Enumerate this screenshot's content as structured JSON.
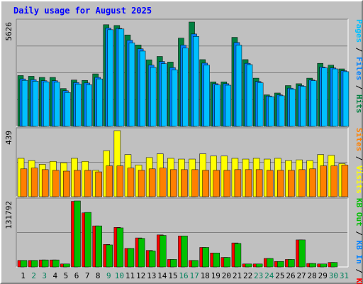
{
  "chart_data": {
    "type": "bar",
    "title": "Daily usage for August 2025",
    "categories": [
      "1",
      "2",
      "3",
      "4",
      "5",
      "6",
      "7",
      "8",
      "9",
      "10",
      "11",
      "12",
      "13",
      "14",
      "15",
      "16",
      "17",
      "18",
      "19",
      "20",
      "21",
      "22",
      "23",
      "24",
      "25",
      "26",
      "27",
      "28",
      "29",
      "30",
      "31"
    ],
    "weekend_days": [
      "2",
      "3",
      "9",
      "10",
      "16",
      "17",
      "23",
      "24",
      "30",
      "31"
    ],
    "panels": [
      {
        "id": "hits",
        "ymax_label": "5626",
        "ymax": 5626,
        "legend": [
          {
            "text": "Hits",
            "color": "#008040"
          },
          {
            "text": "Files",
            "color": "#0080ff"
          },
          {
            "text": "Pages",
            "color": "#00c0ff"
          }
        ],
        "series": [
          {
            "name": "Hits",
            "color": "#008040",
            "values": [
              2740,
              2700,
              2640,
              2640,
              2040,
              2500,
              2480,
              2830,
              5480,
              5440,
              4930,
              4390,
              3590,
              3770,
              3470,
              4760,
              5626,
              3600,
              2400,
              2400,
              4800,
              3600,
              2600,
              1700,
              1800,
              2200,
              2300,
              2600,
              3400,
              3300,
              3100
            ]
          },
          {
            "name": "Files",
            "color": "#0080ff",
            "values": [
              2560,
              2520,
              2460,
              2460,
              1920,
              2360,
              2340,
              2640,
              5300,
              5280,
              4640,
              4180,
              3300,
              3500,
              3170,
              4380,
              4980,
              3410,
              2300,
              2300,
              4520,
              3400,
              2420,
              1640,
              1700,
              2060,
              2200,
              2500,
              3200,
              3150,
              3000
            ]
          },
          {
            "name": "Pages",
            "color": "#00c0ff",
            "values": [
              2480,
              2440,
              2400,
              2380,
              1830,
              2280,
              2250,
              2560,
              5210,
              5250,
              4500,
              4060,
              3180,
              3380,
              3050,
              4220,
              4850,
              3300,
              2230,
              2220,
              4380,
              3330,
              2350,
              1600,
              1650,
              2010,
              2160,
              2460,
              3150,
              3100,
              2950
            ]
          }
        ]
      },
      {
        "id": "visits",
        "ymax_label": "439",
        "ymax": 439,
        "legend": [
          {
            "text": "Visits",
            "color": "#ffff00"
          },
          {
            "text": "Sites",
            "color": "#ff8000"
          }
        ],
        "series": [
          {
            "name": "Visits",
            "color": "#ffff00",
            "values": [
              255,
              240,
              215,
              235,
              225,
              255,
              235,
              175,
              305,
              439,
              280,
              210,
              260,
              285,
              255,
              250,
              250,
              285,
              270,
              270,
              255,
              250,
              255,
              250,
              255,
              240,
              245,
              240,
              280,
              275,
              220
            ]
          },
          {
            "name": "Sites",
            "color": "#ff8000",
            "values": [
              185,
              190,
              180,
              175,
              170,
              175,
              175,
              165,
              205,
              205,
              190,
              175,
              185,
              190,
              180,
              180,
              180,
              175,
              175,
              175,
              180,
              180,
              180,
              175,
              175,
              175,
              180,
              185,
              205,
              205,
              210
            ]
          }
        ]
      },
      {
        "id": "kbytes",
        "ymax_label": "131792",
        "ymax": 131792,
        "legend": [
          {
            "text": "KB F",
            "color": "#ff0000"
          },
          {
            "text": "KB In",
            "color": "#0080ff"
          },
          {
            "text": "KB Out",
            "color": "#00c000"
          }
        ],
        "series": [
          {
            "name": "KB F",
            "color": "#ff0000",
            "values": [
              13000,
              13000,
              14000,
              14000,
              6000,
              131000,
              108000,
              82000,
              45000,
              79000,
              37000,
              58000,
              33000,
              64000,
              15000,
              62000,
              13000,
              39000,
              28000,
              19000,
              48000,
              6000,
              6000,
              17000,
              11000,
              15000,
              54000,
              7000,
              6000,
              9000,
              0
            ]
          },
          {
            "name": "KB Out",
            "color": "#00c000",
            "values": [
              13000,
              13000,
              14000,
              14000,
              6000,
              131792,
              109000,
              82000,
              44000,
              78000,
              37000,
              57000,
              32000,
              63000,
              15000,
              62000,
              13000,
              39000,
              28000,
              19000,
              47000,
              6000,
              6000,
              17000,
              11000,
              15000,
              54000,
              7000,
              6000,
              9000,
              0
            ]
          }
        ]
      }
    ]
  }
}
